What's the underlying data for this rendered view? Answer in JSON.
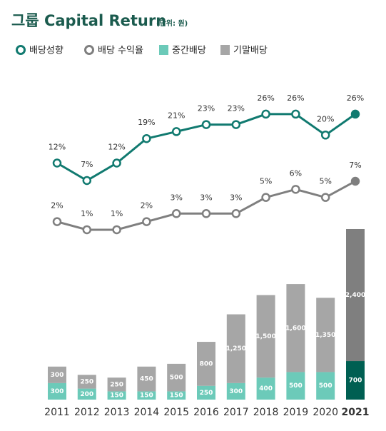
{
  "chart_data": {
    "type": "bar",
    "title": "그룹 Capital Return",
    "subtitle": "(단위: 원)",
    "categories": [
      "2011",
      "2012",
      "2013",
      "2014",
      "2015",
      "2016",
      "2017",
      "2018",
      "2019",
      "2020",
      "2021"
    ],
    "series": [
      {
        "name": "배당성향",
        "type": "line",
        "color": "#117a70",
        "values": [
          12,
          7,
          12,
          19,
          21,
          23,
          23,
          26,
          26,
          20,
          26
        ],
        "value_labels": [
          "12%",
          "7%",
          "12%",
          "19%",
          "21%",
          "23%",
          "23%",
          "26%",
          "26%",
          "20%",
          "26%"
        ]
      },
      {
        "name": "배당 수익율",
        "type": "line",
        "color": "#7f7f7f",
        "values": [
          2,
          1,
          1,
          2,
          3,
          3,
          3,
          5,
          6,
          5,
          7
        ],
        "value_labels": [
          "2%",
          "1%",
          "1%",
          "2%",
          "3%",
          "3%",
          "3%",
          "5%",
          "6%",
          "5%",
          "7%"
        ]
      },
      {
        "name": "중간배당",
        "type": "bar",
        "color": "#6ccab9",
        "values": [
          300,
          200,
          150,
          150,
          150,
          250,
          300,
          400,
          500,
          500,
          700
        ]
      },
      {
        "name": "기말배당",
        "type": "bar",
        "color": "#a6a6a6",
        "values": [
          300,
          250,
          250,
          450,
          500,
          800,
          1250,
          1500,
          1600,
          1350,
          2400
        ],
        "value_labels": [
          "300",
          "250",
          "250",
          "450",
          "500",
          "800",
          "1,250",
          "1,500",
          "1,600",
          "1,350",
          "2,400"
        ]
      }
    ]
  }
}
